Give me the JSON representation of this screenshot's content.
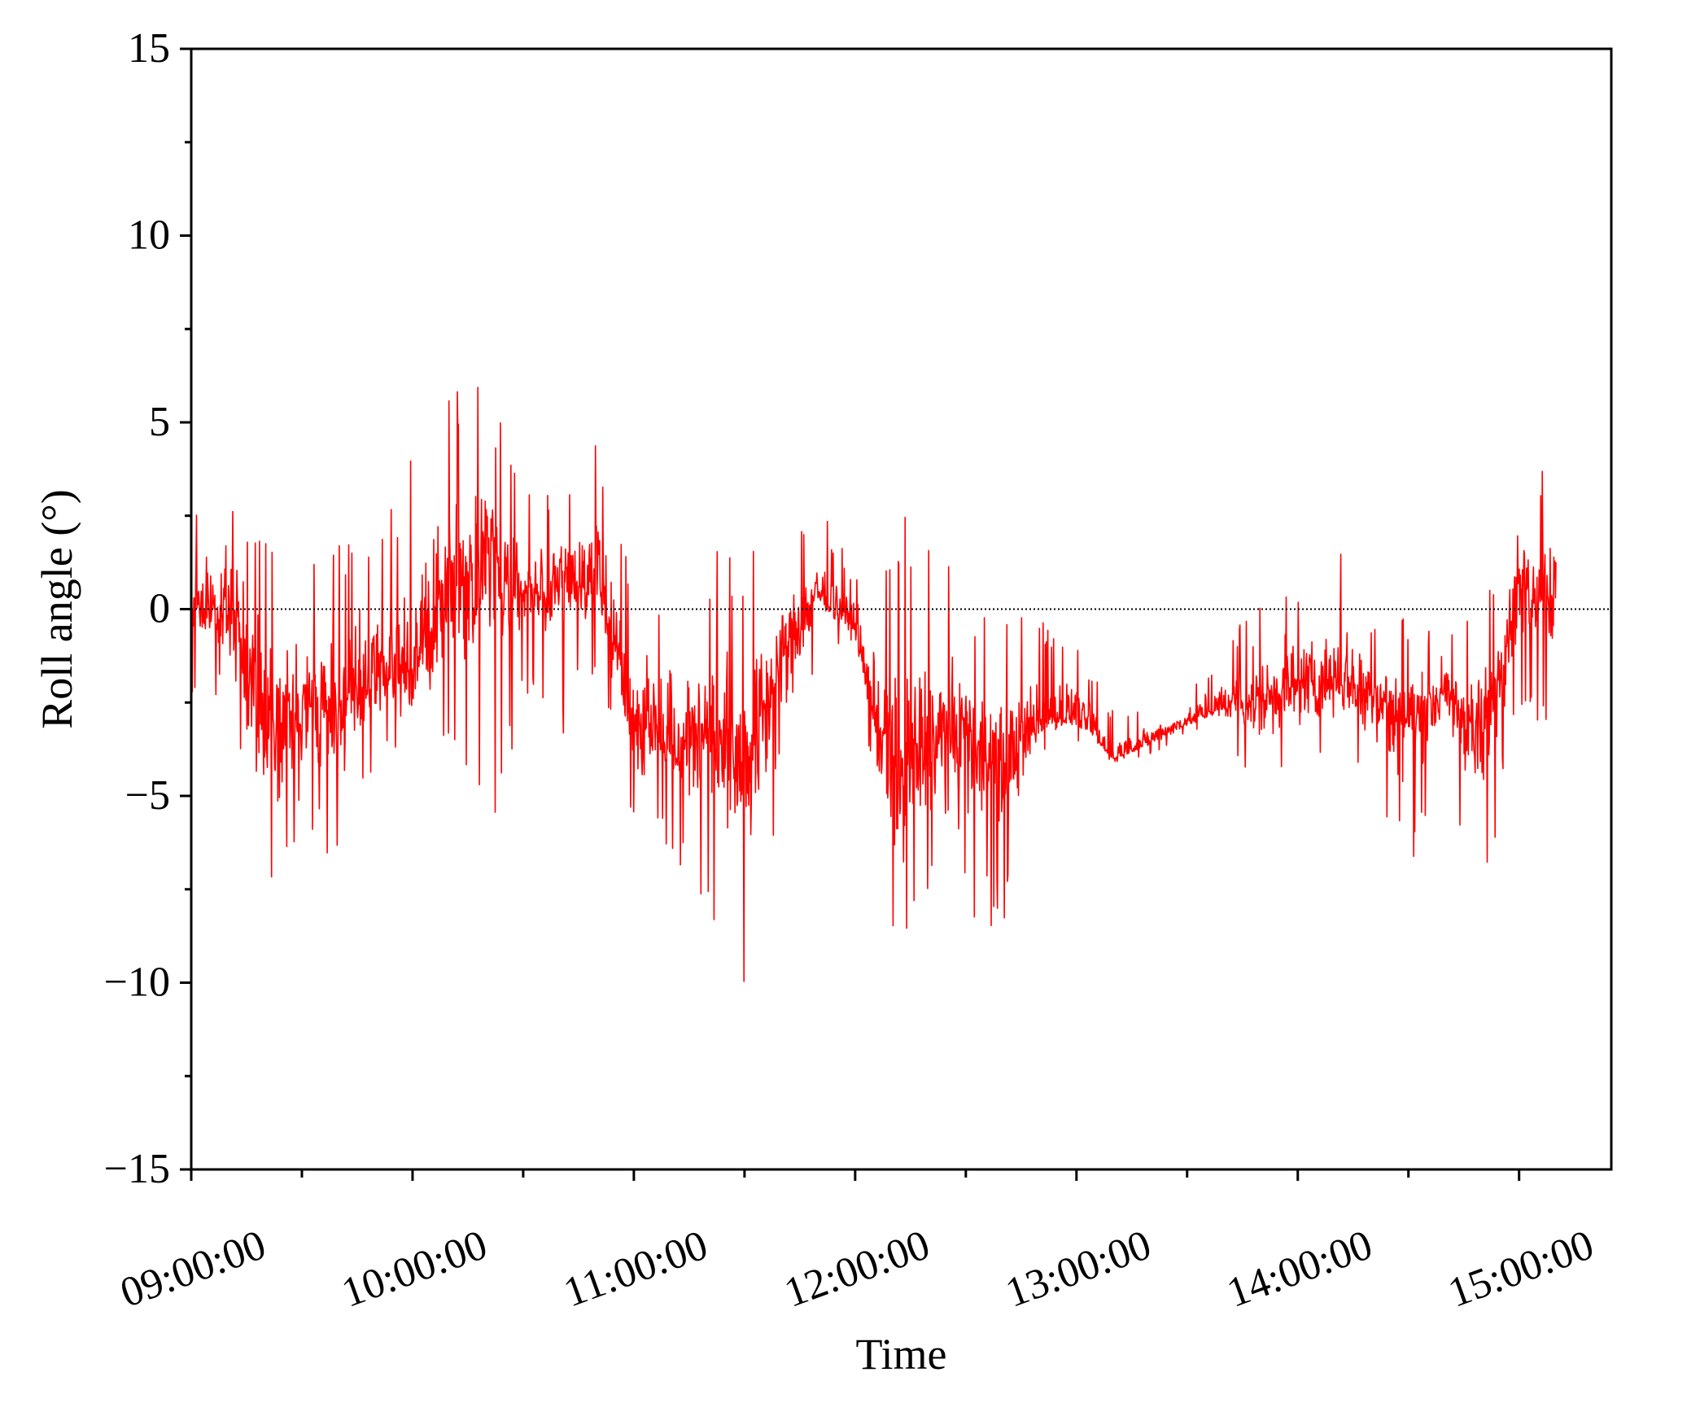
{
  "chart_data": {
    "type": "line",
    "title": "",
    "xlabel": "Time",
    "ylabel": "Roll angle (°)",
    "x_start": "09:00:00",
    "x_end": "15:10:00",
    "xlim": [
      "09:00:00",
      "15:25:00"
    ],
    "ylim": [
      -15,
      15
    ],
    "y_ticks": [
      "15",
      "10",
      "5",
      "0",
      "−5",
      "−10",
      "−15"
    ],
    "x_ticks": [
      "09:00:00",
      "10:00:00",
      "11:00:00",
      "12:00:00",
      "13:00:00",
      "14:00:00",
      "15:00:00"
    ],
    "reference_line": {
      "y": 0,
      "style": "dotted",
      "color": "#000000"
    },
    "grid": false,
    "series": [
      {
        "color": "#ff0000",
        "x": [
          "09:00:00",
          "09:10:00",
          "09:20:00",
          "09:30:00",
          "09:40:00",
          "09:50:00",
          "10:00:00",
          "10:10:00",
          "10:20:00",
          "10:30:00",
          "10:40:00",
          "10:50:00",
          "11:00:00",
          "11:10:00",
          "11:20:00",
          "11:30:00",
          "11:40:00",
          "11:50:00",
          "12:00:00",
          "12:10:00",
          "12:20:00",
          "12:30:00",
          "12:40:00",
          "12:50:00",
          "13:00:00",
          "13:10:00",
          "13:20:00",
          "13:30:00",
          "13:40:00",
          "13:50:00",
          "14:00:00",
          "14:10:00",
          "14:20:00",
          "14:30:00",
          "14:40:00",
          "14:50:00",
          "15:00:00",
          "15:10:00"
        ],
        "y": [
          0.2,
          0.0,
          -2.8,
          -3.0,
          -2.6,
          -2.0,
          -1.5,
          0.5,
          1.6,
          0.4,
          0.8,
          1.0,
          -3.0,
          -3.4,
          -3.3,
          -4.2,
          -1.2,
          0.5,
          -0.5,
          -5.0,
          -3.6,
          -3.4,
          -4.2,
          -3.0,
          -2.8,
          -4.0,
          -3.5,
          -3.0,
          -2.6,
          -2.4,
          -2.0,
          -1.8,
          -2.2,
          -3.0,
          -2.2,
          -3.6,
          0.8,
          0.6
        ],
        "range_min": [
          -2.2,
          -2.6,
          -9.3,
          -5.5,
          -7.0,
          -4.0,
          -4.5,
          -4.5,
          -6.6,
          -2.5,
          -3.5,
          -1.5,
          -6.4,
          -6.5,
          -8.0,
          -10.3,
          -7.0,
          -1.0,
          -1.0,
          -9.2,
          -8.0,
          -8.3,
          -8.7,
          -4.0,
          -3.5,
          -4.1,
          -3.9,
          -3.4,
          -3.2,
          -5.3,
          -4.8,
          -4.0,
          -5.0,
          -7.4,
          -4.4,
          -8.1,
          -2.5,
          -4.2
        ],
        "range_max": [
          3.0,
          3.7,
          2.6,
          1.9,
          2.0,
          2.3,
          4.2,
          6.0,
          6.2,
          3.4,
          3.0,
          5.1,
          0.5,
          1.4,
          1.6,
          2.1,
          1.8,
          2.8,
          1.0,
          2.4,
          3.2,
          0.5,
          0.3,
          -0.3,
          -0.8,
          -2.7,
          -2.6,
          -2.3,
          -1.0,
          0.6,
          0.6,
          2.2,
          0.0,
          0.0,
          -1.0,
          0.8,
          2.5,
          4.7
        ]
      }
    ]
  }
}
